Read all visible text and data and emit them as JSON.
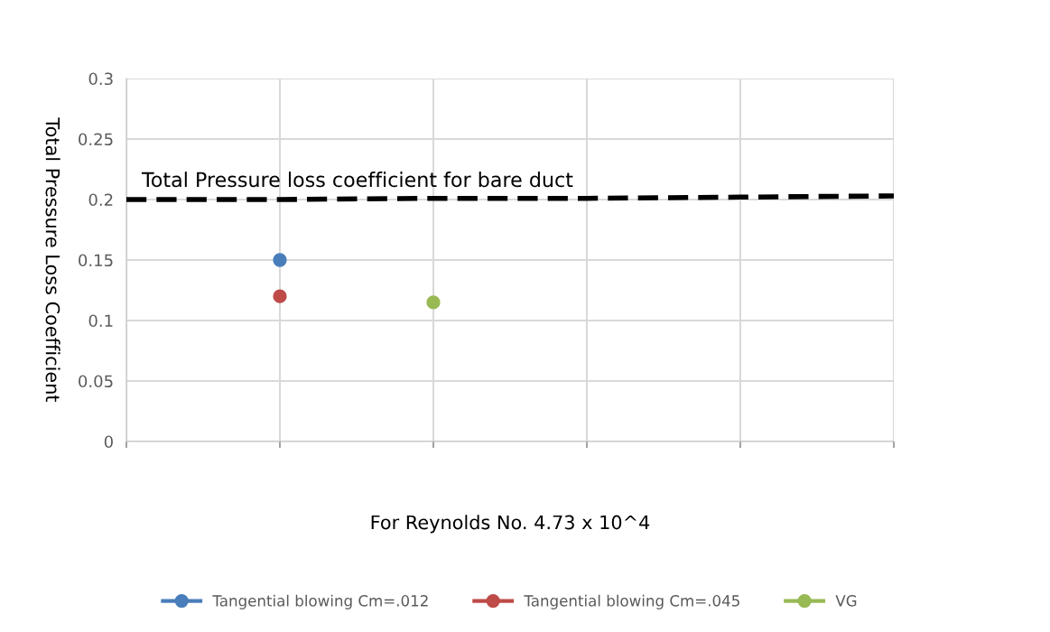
{
  "chart_data": {
    "type": "line",
    "xlabel": "For Reynolds No. 4.73 x 10^4",
    "ylabel": "Total Pressure Loss Coefficient",
    "categories": [
      null,
      null,
      null,
      null,
      null,
      null
    ],
    "ylim": [
      0,
      0.3
    ],
    "yticks": [
      0,
      0.05,
      0.1,
      0.15,
      0.2,
      0.25,
      0.3
    ],
    "grid": true,
    "legend": "bottom",
    "marker": "circle",
    "series": [
      {
        "name": "Tangential blowing Cm=.012",
        "color": "#4a7ebb",
        "values": [
          null,
          0.15,
          null,
          null,
          null,
          null
        ]
      },
      {
        "name": "Tangential blowing Cm=.045",
        "color": "#be4b48",
        "values": [
          null,
          0.12,
          null,
          null,
          null,
          null
        ]
      },
      {
        "name": "VG",
        "color": "#98b954",
        "values": [
          null,
          null,
          0.115,
          null,
          null,
          null
        ]
      },
      {
        "color": "#000000",
        "line_style": "dashed",
        "marker": "none",
        "values": [
          0.2,
          0.2,
          0.201,
          0.201,
          0.202,
          0.203
        ]
      }
    ],
    "annotations": [
      "Total Pressure loss coefficient for bare duct"
    ]
  }
}
